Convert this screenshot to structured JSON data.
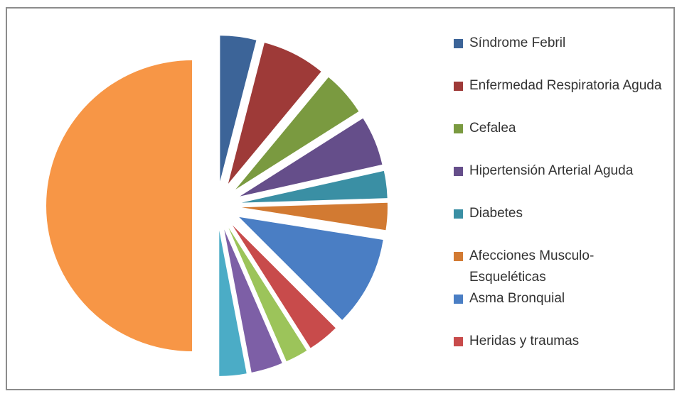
{
  "chart_data": {
    "type": "pie",
    "categories": [
      "Síndrome Febril",
      "Enfermedad Respiratoria Aguda",
      "Cefalea",
      "Hipertensión Arterial Aguda",
      "Diabetes",
      "Afecciones Musculo-Esqueléticas",
      "Asma Bronquial",
      "Heridas y traumas",
      null,
      null,
      null,
      null
    ],
    "values": [
      4,
      7,
      5,
      5.5,
      3,
      3,
      10,
      3.5,
      2.5,
      3.5,
      3,
      50
    ],
    "colors": [
      "#3c6498",
      "#9e3a38",
      "#7a9a40",
      "#654e8a",
      "#3a8fa4",
      "#d27a32",
      "#4a7ec4",
      "#c84b4b",
      "#9cc45a",
      "#7d5fa6",
      "#4bacc6",
      "#f79646"
    ],
    "legend": "right"
  }
}
